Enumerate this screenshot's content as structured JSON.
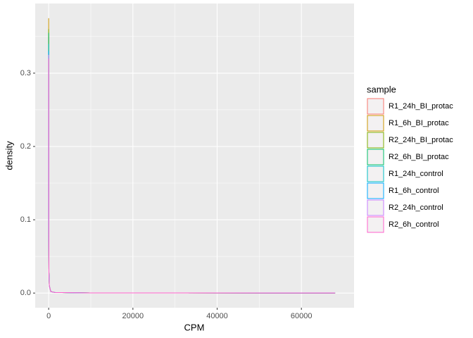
{
  "chart_data": {
    "type": "line",
    "x_label": "CPM",
    "y_label": "density",
    "legend_title": "sample",
    "x": [
      0,
      20,
      60,
      150,
      500,
      1500,
      10000,
      68000
    ],
    "series": [
      {
        "name": "R1_24h_BI_protac",
        "color": "#F8766D",
        "values": [
          0.35,
          0.1,
          0.028,
          0.01,
          0.002,
          0.0008,
          0.0002,
          5e-05
        ]
      },
      {
        "name": "R1_6h_BI_protac",
        "color": "#CD9600",
        "values": [
          0.375,
          0.11,
          0.028,
          0.01,
          0.002,
          0.0008,
          0.0002,
          5e-05
        ]
      },
      {
        "name": "R2_24h_BI_protac",
        "color": "#7CAE00",
        "values": [
          0.36,
          0.1,
          0.028,
          0.01,
          0.002,
          0.0008,
          0.0002,
          5e-05
        ]
      },
      {
        "name": "R2_6h_BI_protac",
        "color": "#00BE67",
        "values": [
          0.355,
          0.1,
          0.028,
          0.01,
          0.002,
          0.0008,
          0.0002,
          5e-05
        ]
      },
      {
        "name": "R1_24h_control",
        "color": "#00BFC4",
        "values": [
          0.34,
          0.1,
          0.028,
          0.01,
          0.002,
          0.0008,
          0.0002,
          5e-05
        ]
      },
      {
        "name": "R1_6h_control",
        "color": "#00A9FF",
        "values": [
          0.33,
          0.1,
          0.028,
          0.01,
          0.002,
          0.0008,
          0.0002,
          5e-05
        ]
      },
      {
        "name": "R2_24h_control",
        "color": "#C77CFF",
        "values": [
          0.325,
          0.1,
          0.028,
          0.01,
          0.002,
          0.0008,
          0.0002,
          5e-05
        ]
      },
      {
        "name": "R2_6h_control",
        "color": "#FF61CC",
        "values": [
          0.32,
          0.1,
          0.028,
          0.01,
          0.002,
          0.0008,
          0.0002,
          5e-05
        ]
      }
    ],
    "xlim": [
      -3200,
      72500
    ],
    "ylim": [
      -0.02,
      0.395
    ],
    "xticks": [
      0,
      20000,
      40000,
      60000
    ],
    "yticks": [
      {
        "value": 0,
        "label": "0.0"
      },
      {
        "value": 0.1,
        "label": "0.1"
      },
      {
        "value": 0.2,
        "label": "0.2"
      },
      {
        "value": 0.3,
        "label": "0.3"
      }
    ],
    "x_minor_ticks": [
      10000,
      30000,
      50000
    ],
    "y_minor_ticks": [
      0.05,
      0.15,
      0.25,
      0.35
    ],
    "grid": true,
    "legend_position": "right"
  }
}
